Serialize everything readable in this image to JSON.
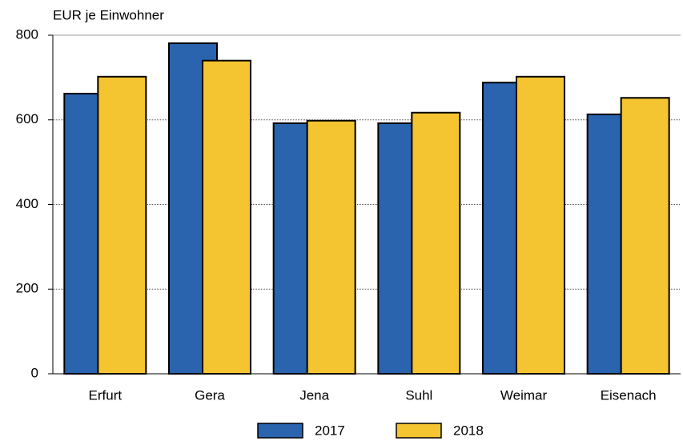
{
  "chart_data": {
    "type": "bar",
    "y_label": "EUR je Einwohner",
    "categories": [
      "Erfurt",
      "Gera",
      "Jena",
      "Suhl",
      "Weimar",
      "Eisenach"
    ],
    "series": [
      {
        "name": "2017",
        "color": "#2a63ae",
        "values": [
          662,
          781,
          592,
          592,
          688,
          613
        ]
      },
      {
        "name": "2018",
        "color": "#f5c431",
        "values": [
          702,
          740,
          598,
          617,
          702,
          652
        ]
      }
    ],
    "ylim": [
      0,
      800
    ],
    "yticks": [
      0,
      200,
      400,
      600,
      800
    ],
    "grid": true,
    "legend": "bottom"
  }
}
